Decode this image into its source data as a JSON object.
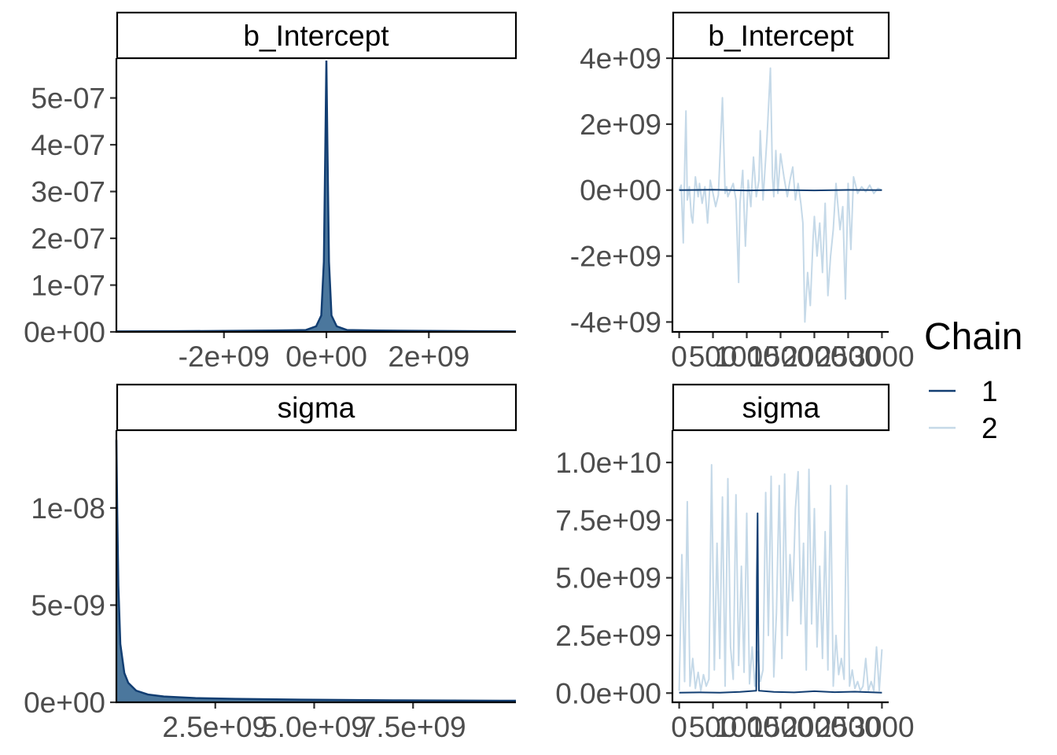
{
  "colors": {
    "chain1": "#123e72",
    "chain2": "#c5d9e8",
    "density_fill": "#2c5f8c",
    "density_line": "#123e72"
  },
  "legend": {
    "title": "Chain",
    "items": [
      {
        "label": "1",
        "color": "#123e72"
      },
      {
        "label": "2",
        "color": "#c5d9e8"
      }
    ]
  },
  "chart_data": [
    {
      "type": "area",
      "panel": "density",
      "strip": "b_Intercept",
      "xlim": [
        -4100000000,
        3700000000
      ],
      "ylim": [
        0,
        5.85e-07
      ],
      "xticks": [
        {
          "value": -2000000000,
          "label": "-2e+09"
        },
        {
          "value": 0,
          "label": "0e+00"
        },
        {
          "value": 2000000000,
          "label": "2e+09"
        }
      ],
      "yticks": [
        {
          "value": 0,
          "label": "0e+00"
        },
        {
          "value": 1e-07,
          "label": "1e-07"
        },
        {
          "value": 2e-07,
          "label": "2e-07"
        },
        {
          "value": 3e-07,
          "label": "3e-07"
        },
        {
          "value": 4e-07,
          "label": "4e-07"
        },
        {
          "value": 5e-07,
          "label": "5e-07"
        }
      ],
      "x": [
        -4100000000,
        -3000000000,
        -2000000000,
        -1000000000,
        -400000000,
        -200000000,
        -100000000,
        -50000000,
        -20000000,
        0,
        20000000,
        50000000,
        100000000,
        200000000,
        400000000,
        1000000000,
        2000000000,
        3000000000,
        3700000000
      ],
      "y": [
        1e-09,
        1.5e-09,
        2e-09,
        3e-09,
        4e-09,
        1.2e-08,
        3.5e-08,
        1.5e-07,
        4e-07,
        5.8e-07,
        4e-07,
        1.5e-07,
        3.5e-08,
        1.2e-08,
        4e-09,
        3e-09,
        2e-09,
        1.5e-09,
        1e-09
      ]
    },
    {
      "type": "line",
      "panel": "trace",
      "strip": "b_Intercept",
      "xlim": [
        -100,
        3100
      ],
      "ylim": [
        -4300000000,
        4000000000
      ],
      "xticks": [
        {
          "value": 0,
          "label": "0"
        },
        {
          "value": 500,
          "label": "500"
        },
        {
          "value": 1000,
          "label": "1000"
        },
        {
          "value": 1500,
          "label": "1500"
        },
        {
          "value": 2000,
          "label": "2000"
        },
        {
          "value": 2500,
          "label": "2500"
        },
        {
          "value": 3000,
          "label": "3000"
        }
      ],
      "yticks": [
        {
          "value": -4000000000,
          "label": "-4e+09"
        },
        {
          "value": -2000000000,
          "label": "-2e+09"
        },
        {
          "value": 0,
          "label": "0e+00"
        },
        {
          "value": 2000000000,
          "label": "2e+09"
        },
        {
          "value": 4000000000,
          "label": "4e+09"
        }
      ],
      "series": [
        {
          "name": "2",
          "x": [
            0,
            30,
            60,
            80,
            100,
            120,
            150,
            180,
            200,
            240,
            280,
            300,
            340,
            380,
            420,
            460,
            500,
            540,
            580,
            640,
            680,
            700,
            720,
            760,
            800,
            840,
            880,
            900,
            940,
            980,
            1020,
            1060,
            1100,
            1140,
            1180,
            1200,
            1240,
            1300,
            1350,
            1380,
            1400,
            1430,
            1460,
            1500,
            1550,
            1600,
            1640,
            1680,
            1720,
            1760,
            1800,
            1830,
            1860,
            1900,
            1940,
            1980,
            2000,
            2040,
            2080,
            2120,
            2160,
            2200,
            2240,
            2280,
            2320,
            2380,
            2420,
            2460,
            2500,
            2540,
            2580,
            2640,
            2700,
            2760,
            2820,
            2880,
            2940,
            3000
          ],
          "y": [
            0,
            150000000,
            -1600000000,
            600000000,
            2400000000,
            -300000000,
            100000000,
            -800000000,
            -1000000000,
            400000000,
            -200000000,
            200000000,
            -400000000,
            100000000,
            -1000000000,
            300000000,
            -100000000,
            -500000000,
            -150000000,
            2800000000,
            -100000000,
            100000000,
            -200000000,
            0,
            200000000,
            -300000000,
            -2800000000,
            -400000000,
            600000000,
            -1700000000,
            300000000,
            -500000000,
            1000000000,
            -200000000,
            300000000,
            1800000000,
            -300000000,
            1600000000,
            3700000000,
            400000000,
            -200000000,
            1200000000,
            -100000000,
            1100000000,
            400000000,
            -200000000,
            300000000,
            700000000,
            -300000000,
            200000000,
            -400000000,
            -1000000000,
            -4000000000,
            -2500000000,
            -3500000000,
            -1500000000,
            -800000000,
            -2000000000,
            -1000000000,
            -2500000000,
            -400000000,
            -3200000000,
            -2000000000,
            -1200000000,
            200000000,
            -1200000000,
            -500000000,
            -3300000000,
            200000000,
            -1800000000,
            400000000,
            -100000000,
            100000000,
            -50000000,
            150000000,
            -100000000,
            50000000,
            0
          ]
        },
        {
          "name": "1",
          "x": [
            0,
            500,
            1000,
            1500,
            2000,
            2500,
            3000
          ],
          "y": [
            0,
            10000000,
            -10000000,
            5000000,
            -10000000,
            5000000,
            0
          ]
        }
      ]
    },
    {
      "type": "area",
      "panel": "density",
      "strip": "sigma",
      "xlim": [
        0,
        10100000000
      ],
      "ylim": [
        0,
        1.4e-08
      ],
      "xticks": [
        {
          "value": 2500000000,
          "label": "2.5e+09"
        },
        {
          "value": 5000000000,
          "label": "5.0e+09"
        },
        {
          "value": 7500000000,
          "label": "7.5e+09"
        }
      ],
      "yticks": [
        {
          "value": 0,
          "label": "0e+00"
        },
        {
          "value": 5e-09,
          "label": "5e-09"
        },
        {
          "value": 1e-08,
          "label": "1e-08"
        }
      ],
      "x": [
        0,
        20000000,
        50000000,
        100000000,
        200000000,
        300000000,
        500000000,
        800000000,
        1200000000,
        2000000000,
        3000000000,
        5000000000,
        7000000000,
        8500000000,
        10100000000
      ],
      "y": [
        1.35e-08,
        1e-08,
        6e-09,
        3e-09,
        1.5e-09,
        1e-09,
        6e-10,
        4e-10,
        3e-10,
        2.2e-10,
        1.8e-10,
        1.3e-10,
        1e-10,
        9e-11,
        8e-11
      ]
    },
    {
      "type": "line",
      "panel": "trace",
      "strip": "sigma",
      "xlim": [
        -100,
        3100
      ],
      "ylim": [
        -400000000,
        11400000000
      ],
      "xticks": [
        {
          "value": 0,
          "label": "0"
        },
        {
          "value": 500,
          "label": "500"
        },
        {
          "value": 1000,
          "label": "1000"
        },
        {
          "value": 1500,
          "label": "1500"
        },
        {
          "value": 2000,
          "label": "2000"
        },
        {
          "value": 2500,
          "label": "2500"
        },
        {
          "value": 3000,
          "label": "3000"
        }
      ],
      "yticks": [
        {
          "value": 0,
          "label": "0.0e+00"
        },
        {
          "value": 2500000000,
          "label": "2.5e+09"
        },
        {
          "value": 5000000000,
          "label": "5.0e+09"
        },
        {
          "value": 7500000000,
          "label": "7.5e+09"
        },
        {
          "value": 10000000000,
          "label": "1.0e+10"
        }
      ],
      "series": [
        {
          "name": "2",
          "x": [
            0,
            40,
            80,
            120,
            160,
            200,
            240,
            280,
            320,
            360,
            400,
            440,
            480,
            520,
            560,
            600,
            640,
            680,
            720,
            760,
            800,
            840,
            880,
            920,
            960,
            1000,
            1040,
            1080,
            1120,
            1160,
            1200,
            1240,
            1280,
            1320,
            1360,
            1400,
            1440,
            1480,
            1520,
            1560,
            1600,
            1640,
            1680,
            1720,
            1760,
            1800,
            1840,
            1880,
            1920,
            1960,
            2000,
            2040,
            2080,
            2120,
            2160,
            2200,
            2240,
            2280,
            2320,
            2360,
            2400,
            2440,
            2480,
            2520,
            2560,
            2600,
            2640,
            2680,
            2720,
            2760,
            2800,
            2840,
            2880,
            2920,
            2960,
            3000
          ],
          "y": [
            100000000,
            6000000000,
            500000000,
            8300000000,
            300000000,
            1500000000,
            200000000,
            900000000,
            100000000,
            800000000,
            300000000,
            600000000,
            9900000000,
            1000000000,
            6500000000,
            1500000000,
            8500000000,
            300000000,
            9300000000,
            2000000000,
            600000000,
            8600000000,
            1200000000,
            5500000000,
            900000000,
            7800000000,
            400000000,
            2000000000,
            300000000,
            1800000000,
            500000000,
            1000000000,
            8700000000,
            2500000000,
            9400000000,
            700000000,
            3500000000,
            9000000000,
            1500000000,
            9500000000,
            2500000000,
            6000000000,
            4000000000,
            8000000000,
            9600000000,
            3000000000,
            6500000000,
            1000000000,
            9700000000,
            3000000000,
            8000000000,
            2000000000,
            5500000000,
            1500000000,
            7000000000,
            1000000000,
            9000000000,
            300000000,
            2500000000,
            800000000,
            1500000000,
            600000000,
            9000000000,
            300000000,
            1000000000,
            200000000,
            500000000,
            100000000,
            300000000,
            1500000000,
            100000000,
            500000000,
            100000000,
            2000000000,
            100000000,
            1900000000
          ]
        },
        {
          "name": "1",
          "x": [
            0,
            300,
            600,
            900,
            1140,
            1150,
            1160,
            1170,
            1180,
            1400,
            1700,
            2000,
            2300,
            2600,
            3000
          ],
          "y": [
            20000000,
            30000000,
            20000000,
            50000000,
            100000000,
            5000000000,
            7800000000,
            3000000000,
            100000000,
            50000000,
            30000000,
            80000000,
            40000000,
            60000000,
            20000000
          ]
        }
      ]
    }
  ]
}
